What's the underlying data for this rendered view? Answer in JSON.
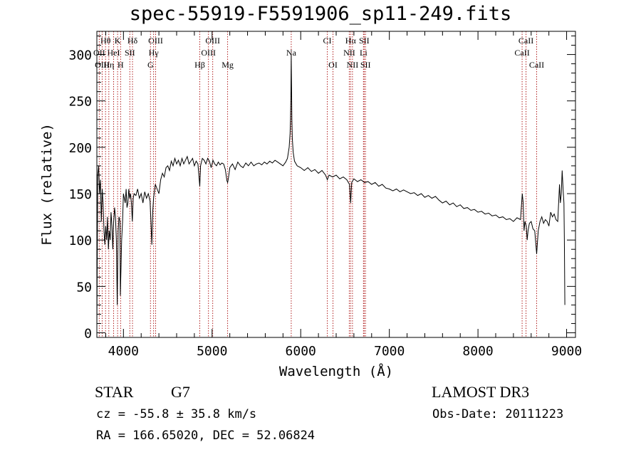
{
  "header": {
    "title": "spec-55919-F5591906_sp11-249.fits"
  },
  "footer": {
    "object_class": "STAR",
    "subclass": "G7",
    "survey": "LAMOST DR3",
    "cz": "cz = -55.8 ± 35.8 km/s",
    "obs_date": "Obs-Date: 20111223",
    "radec": "RA = 166.65020, DEC =  52.06824"
  },
  "colors": {
    "line_marker": "#b22222",
    "spectrum": "#000000"
  },
  "chart_data": {
    "type": "line",
    "title": "spec-55919-F5591906_sp11-249.fits",
    "xlabel": "Wavelength (Å)",
    "ylabel": "Flux (relative)",
    "xlim": [
      3700,
      9100
    ],
    "ylim": [
      -5,
      325
    ],
    "xticks": [
      4000,
      5000,
      6000,
      7000,
      8000,
      9000
    ],
    "yticks": [
      0,
      50,
      100,
      150,
      200,
      250,
      300
    ],
    "grid": false,
    "series": [
      {
        "name": "flux",
        "points": [
          [
            3700,
            5
          ],
          [
            3710,
            170
          ],
          [
            3720,
            180
          ],
          [
            3730,
            150
          ],
          [
            3740,
            165
          ],
          [
            3750,
            120
          ],
          [
            3760,
            155
          ],
          [
            3770,
            140
          ],
          [
            3780,
            110
          ],
          [
            3790,
            95
          ],
          [
            3800,
            115
          ],
          [
            3810,
            100
          ],
          [
            3820,
            125
          ],
          [
            3830,
            90
          ],
          [
            3840,
            110
          ],
          [
            3850,
            100
          ],
          [
            3860,
            130
          ],
          [
            3870,
            115
          ],
          [
            3880,
            90
          ],
          [
            3890,
            120
          ],
          [
            3900,
            135
          ],
          [
            3910,
            125
          ],
          [
            3920,
            100
          ],
          [
            3930,
            30
          ],
          [
            3940,
            110
          ],
          [
            3950,
            125
          ],
          [
            3960,
            120
          ],
          [
            3965,
            40
          ],
          [
            3970,
            60
          ],
          [
            3980,
            100
          ],
          [
            3990,
            120
          ],
          [
            4000,
            150
          ],
          [
            4010,
            145
          ],
          [
            4020,
            140
          ],
          [
            4030,
            155
          ],
          [
            4040,
            135
          ],
          [
            4050,
            140
          ],
          [
            4060,
            155
          ],
          [
            4070,
            145
          ],
          [
            4080,
            150
          ],
          [
            4090,
            140
          ],
          [
            4100,
            120
          ],
          [
            4110,
            145
          ],
          [
            4120,
            150
          ],
          [
            4140,
            148
          ],
          [
            4160,
            155
          ],
          [
            4180,
            145
          ],
          [
            4200,
            150
          ],
          [
            4220,
            140
          ],
          [
            4240,
            152
          ],
          [
            4260,
            145
          ],
          [
            4280,
            150
          ],
          [
            4300,
            142
          ],
          [
            4310,
            120
          ],
          [
            4320,
            95
          ],
          [
            4330,
            130
          ],
          [
            4340,
            145
          ],
          [
            4360,
            160
          ],
          [
            4380,
            155
          ],
          [
            4400,
            150
          ],
          [
            4420,
            165
          ],
          [
            4440,
            172
          ],
          [
            4460,
            168
          ],
          [
            4480,
            178
          ],
          [
            4500,
            180
          ],
          [
            4520,
            175
          ],
          [
            4540,
            185
          ],
          [
            4560,
            180
          ],
          [
            4580,
            188
          ],
          [
            4600,
            182
          ],
          [
            4620,
            186
          ],
          [
            4640,
            180
          ],
          [
            4660,
            188
          ],
          [
            4680,
            182
          ],
          [
            4700,
            186
          ],
          [
            4720,
            190
          ],
          [
            4740,
            182
          ],
          [
            4760,
            185
          ],
          [
            4780,
            188
          ],
          [
            4800,
            180
          ],
          [
            4820,
            185
          ],
          [
            4840,
            182
          ],
          [
            4861,
            158
          ],
          [
            4870,
            180
          ],
          [
            4890,
            188
          ],
          [
            4910,
            186
          ],
          [
            4930,
            182
          ],
          [
            4950,
            188
          ],
          [
            4970,
            185
          ],
          [
            4990,
            178
          ],
          [
            5010,
            186
          ],
          [
            5030,
            182
          ],
          [
            5050,
            180
          ],
          [
            5070,
            184
          ],
          [
            5090,
            181
          ],
          [
            5110,
            183
          ],
          [
            5130,
            182
          ],
          [
            5150,
            176
          ],
          [
            5167,
            164
          ],
          [
            5175,
            162
          ],
          [
            5183,
            166
          ],
          [
            5200,
            178
          ],
          [
            5230,
            182
          ],
          [
            5260,
            176
          ],
          [
            5290,
            184
          ],
          [
            5320,
            180
          ],
          [
            5350,
            178
          ],
          [
            5380,
            183
          ],
          [
            5410,
            180
          ],
          [
            5440,
            184
          ],
          [
            5470,
            180
          ],
          [
            5500,
            182
          ],
          [
            5530,
            183
          ],
          [
            5560,
            181
          ],
          [
            5590,
            184
          ],
          [
            5620,
            182
          ],
          [
            5650,
            185
          ],
          [
            5680,
            183
          ],
          [
            5710,
            186
          ],
          [
            5740,
            184
          ],
          [
            5770,
            182
          ],
          [
            5800,
            180
          ],
          [
            5830,
            184
          ],
          [
            5850,
            188
          ],
          [
            5870,
            200
          ],
          [
            5880,
            215
          ],
          [
            5885,
            230
          ],
          [
            5890,
            260
          ],
          [
            5893,
            300
          ],
          [
            5896,
            270
          ],
          [
            5900,
            230
          ],
          [
            5905,
            210
          ],
          [
            5915,
            195
          ],
          [
            5930,
            185
          ],
          [
            5960,
            180
          ],
          [
            6000,
            178
          ],
          [
            6040,
            175
          ],
          [
            6080,
            178
          ],
          [
            6120,
            174
          ],
          [
            6160,
            176
          ],
          [
            6200,
            172
          ],
          [
            6240,
            175
          ],
          [
            6280,
            170
          ],
          [
            6300,
            165
          ],
          [
            6320,
            170
          ],
          [
            6360,
            168
          ],
          [
            6400,
            170
          ],
          [
            6440,
            166
          ],
          [
            6480,
            168
          ],
          [
            6520,
            165
          ],
          [
            6550,
            160
          ],
          [
            6563,
            140
          ],
          [
            6575,
            162
          ],
          [
            6600,
            166
          ],
          [
            6640,
            163
          ],
          [
            6680,
            165
          ],
          [
            6720,
            162
          ],
          [
            6760,
            163
          ],
          [
            6800,
            160
          ],
          [
            6840,
            162
          ],
          [
            6880,
            158
          ],
          [
            6920,
            160
          ],
          [
            6960,
            156
          ],
          [
            7000,
            155
          ],
          [
            7040,
            153
          ],
          [
            7080,
            155
          ],
          [
            7120,
            152
          ],
          [
            7160,
            154
          ],
          [
            7200,
            152
          ],
          [
            7240,
            150
          ],
          [
            7280,
            151
          ],
          [
            7320,
            148
          ],
          [
            7360,
            150
          ],
          [
            7400,
            146
          ],
          [
            7440,
            148
          ],
          [
            7480,
            145
          ],
          [
            7520,
            147
          ],
          [
            7560,
            143
          ],
          [
            7600,
            140
          ],
          [
            7640,
            142
          ],
          [
            7680,
            138
          ],
          [
            7720,
            140
          ],
          [
            7760,
            136
          ],
          [
            7800,
            138
          ],
          [
            7840,
            134
          ],
          [
            7880,
            135
          ],
          [
            7920,
            132
          ],
          [
            7960,
            133
          ],
          [
            8000,
            130
          ],
          [
            8040,
            131
          ],
          [
            8080,
            128
          ],
          [
            8120,
            129
          ],
          [
            8160,
            126
          ],
          [
            8200,
            127
          ],
          [
            8240,
            124
          ],
          [
            8280,
            125
          ],
          [
            8320,
            122
          ],
          [
            8360,
            123
          ],
          [
            8400,
            120
          ],
          [
            8440,
            124
          ],
          [
            8480,
            122
          ],
          [
            8500,
            150
          ],
          [
            8510,
            140
          ],
          [
            8520,
            110
          ],
          [
            8530,
            120
          ],
          [
            8545,
            115
          ],
          [
            8555,
            100
          ],
          [
            8565,
            110
          ],
          [
            8580,
            118
          ],
          [
            8600,
            120
          ],
          [
            8620,
            112
          ],
          [
            8640,
            110
          ],
          [
            8662,
            85
          ],
          [
            8680,
            110
          ],
          [
            8700,
            120
          ],
          [
            8720,
            125
          ],
          [
            8740,
            118
          ],
          [
            8760,
            122
          ],
          [
            8780,
            120
          ],
          [
            8800,
            115
          ],
          [
            8820,
            130
          ],
          [
            8840,
            125
          ],
          [
            8860,
            128
          ],
          [
            8880,
            122
          ],
          [
            8900,
            120
          ],
          [
            8920,
            160
          ],
          [
            8930,
            140
          ],
          [
            8940,
            150
          ],
          [
            8950,
            175
          ],
          [
            8960,
            155
          ],
          [
            8970,
            140
          ],
          [
            8975,
            100
          ],
          [
            8980,
            30
          ]
        ]
      }
    ],
    "annotations": [
      {
        "label": "Hθ",
        "wavelength": 3798,
        "row": 1
      },
      {
        "label": "OII",
        "wavelength": 3727,
        "row": 2
      },
      {
        "label": "OIII",
        "wavelength": 3760,
        "row": 3
      },
      {
        "label": "K",
        "wavelength": 3934,
        "row": 1
      },
      {
        "label": "HeI",
        "wavelength": 3889,
        "row": 2
      },
      {
        "label": "Hη",
        "wavelength": 3835,
        "row": 3
      },
      {
        "label": "Hδ",
        "wavelength": 4102,
        "row": 1
      },
      {
        "label": "SII",
        "wavelength": 4072,
        "row": 2
      },
      {
        "label": "H",
        "wavelength": 3968,
        "row": 3
      },
      {
        "label": "OIII",
        "wavelength": 4363,
        "row": 1
      },
      {
        "label": "Hγ",
        "wavelength": 4340,
        "row": 2
      },
      {
        "label": "G",
        "wavelength": 4305,
        "row": 3
      },
      {
        "label": "OIII",
        "wavelength": 5007,
        "row": 1
      },
      {
        "label": "OIII",
        "wavelength": 4959,
        "row": 2
      },
      {
        "label": "Hβ",
        "wavelength": 4861,
        "row": 3
      },
      {
        "label": "Mg",
        "wavelength": 5175,
        "row": 3
      },
      {
        "label": "Na",
        "wavelength": 5893,
        "row": 2
      },
      {
        "label": "CI",
        "wavelength": 6300,
        "row": 1
      },
      {
        "label": "OI",
        "wavelength": 6364,
        "row": 3
      },
      {
        "label": "Hα",
        "wavelength": 6563,
        "row": 1
      },
      {
        "label": "SII",
        "wavelength": 6716,
        "row": 1
      },
      {
        "label": "NII",
        "wavelength": 6548,
        "row": 2
      },
      {
        "label": "Li",
        "wavelength": 6708,
        "row": 2
      },
      {
        "label": "NII",
        "wavelength": 6584,
        "row": 3
      },
      {
        "label": "SII",
        "wavelength": 6731,
        "row": 3
      },
      {
        "label": "CaII",
        "wavelength": 8542,
        "row": 1
      },
      {
        "label": "CaII",
        "wavelength": 8498,
        "row": 2
      },
      {
        "label": "CaII",
        "wavelength": 8662,
        "row": 3
      }
    ]
  }
}
